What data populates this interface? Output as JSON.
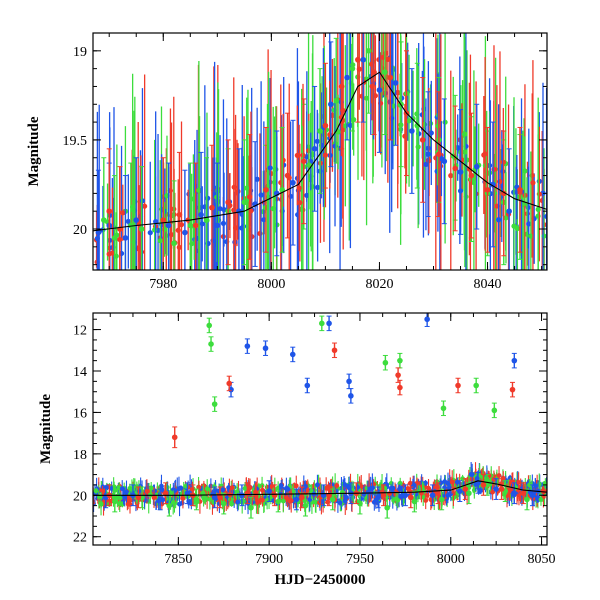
{
  "colors": {
    "blue": "#1f55e8",
    "red": "#f03a2a",
    "green": "#3ddd3d",
    "fit_curve": "#000000",
    "frame": "#000000",
    "background": "#ffffff"
  },
  "chart_data": [
    {
      "type": "scatter",
      "title": "",
      "xlabel": "",
      "ylabel": "Magnitude",
      "xlim": [
        7967,
        8051
      ],
      "ylim": [
        20.23,
        18.9
      ],
      "y_inverted": true,
      "xticks": [
        7980,
        8000,
        8020,
        8040
      ],
      "xtick_labels": [
        "7980",
        "8000",
        "8020",
        "8040"
      ],
      "yticks": [
        19,
        19.5,
        20
      ],
      "ytick_labels": [
        "19",
        "19.5",
        "20"
      ],
      "grid": false,
      "legend": "none",
      "error_bars": true,
      "series_colors": [
        "blue",
        "green",
        "red"
      ],
      "series": [
        {
          "color": "blue",
          "x": [
            7968,
            7970,
            7973,
            7975,
            7981,
            7984,
            7987,
            7990,
            7994,
            7997,
            8001,
            8004,
            8008,
            8011,
            8014,
            8017,
            8020,
            8023,
            8026,
            8029,
            8032,
            8035,
            8038,
            8041,
            8044
          ],
          "y": [
            20.02,
            19.98,
            20.05,
            19.95,
            19.98,
            20.02,
            19.92,
            19.98,
            19.9,
            19.86,
            19.8,
            19.74,
            19.55,
            19.3,
            19.15,
            19.05,
            19.22,
            19.18,
            19.45,
            19.58,
            19.62,
            19.68,
            19.65,
            19.75,
            19.9
          ]
        },
        {
          "color": "green",
          "x": [
            7969,
            7971,
            7974,
            7976,
            7982,
            7985,
            7988,
            7992,
            7995,
            7999,
            8002,
            8006,
            8009,
            8012,
            8015,
            8018,
            8021,
            8024,
            8027,
            8031,
            8034,
            8037,
            8040,
            8043,
            8046
          ],
          "y": [
            19.95,
            20.05,
            19.98,
            20.0,
            20.08,
            19.98,
            19.95,
            19.9,
            19.85,
            19.88,
            19.78,
            19.65,
            19.45,
            19.28,
            19.1,
            19.0,
            19.12,
            19.3,
            19.42,
            19.5,
            19.6,
            19.72,
            19.8,
            19.85,
            19.82
          ]
        },
        {
          "color": "red",
          "x": [
            7970,
            7972,
            7980,
            7983,
            7986,
            7989,
            7992,
            7996,
            7999,
            8003,
            8006,
            8010,
            8013,
            8016,
            8019,
            8022,
            8025,
            8028,
            8031,
            8034,
            8037,
            8040,
            8043,
            8046
          ],
          "y": [
            19.9,
            20.0,
            19.95,
            19.92,
            19.98,
            19.88,
            19.85,
            19.82,
            19.78,
            19.7,
            19.62,
            19.42,
            19.2,
            19.05,
            19.12,
            19.15,
            19.35,
            19.5,
            19.58,
            19.66,
            19.7,
            19.78,
            19.8,
            19.78
          ]
        }
      ],
      "fit_curve": {
        "x": [
          7967,
          7975,
          7985,
          7995,
          8005,
          8012,
          8016,
          8020,
          8025,
          8030,
          8035,
          8040,
          8045,
          8051
        ],
        "y": [
          20.01,
          19.98,
          19.95,
          19.9,
          19.75,
          19.45,
          19.2,
          19.12,
          19.35,
          19.5,
          19.62,
          19.74,
          19.83,
          19.89
        ]
      }
    },
    {
      "type": "scatter",
      "title": "",
      "xlabel": "HJD−2450000",
      "ylabel": "Magnitude",
      "xlim": [
        7803,
        8053
      ],
      "ylim": [
        22.4,
        11.2
      ],
      "y_inverted": true,
      "xticks": [
        7850,
        7900,
        7950,
        8000,
        8050
      ],
      "xtick_labels": [
        "7850",
        "7900",
        "7950",
        "8000",
        "8050"
      ],
      "yticks": [
        12,
        14,
        16,
        18,
        20,
        22
      ],
      "ytick_labels": [
        "12",
        "14",
        "16",
        "18",
        "20",
        "22"
      ],
      "grid": false,
      "legend": "none",
      "error_bars": true,
      "series_colors": [
        "blue",
        "green",
        "red"
      ],
      "series": [
        {
          "color": "blue",
          "x": [
            7810,
            7825,
            7840,
            7855,
            7870,
            7885,
            7900,
            7915,
            7930,
            7945,
            7960,
            7975,
            7990,
            8005,
            8015,
            8025,
            8035,
            8045,
            7888,
            7898,
            7913,
            7921,
            7933,
            7945,
            7987,
            7879,
            7944,
            8035
          ],
          "y": [
            20.1,
            20.0,
            20.2,
            19.9,
            20.1,
            20.0,
            19.8,
            20.2,
            20.0,
            19.9,
            20.1,
            20.0,
            20.0,
            19.8,
            19.4,
            19.7,
            19.9,
            20.0,
            12.8,
            12.9,
            13.2,
            14.7,
            11.7,
            15.2,
            11.5,
            14.9,
            14.5,
            13.5
          ]
        },
        {
          "color": "green",
          "x": [
            7815,
            7830,
            7845,
            7860,
            7875,
            7890,
            7905,
            7920,
            7935,
            7950,
            7965,
            7980,
            7995,
            8010,
            8020,
            8030,
            8042,
            7867,
            7868,
            7870,
            7929,
            7964,
            7972,
            7996,
            8014,
            8024
          ],
          "y": [
            20.3,
            20.1,
            20.5,
            20.2,
            20.4,
            20.6,
            20.3,
            20.5,
            20.2,
            20.4,
            20.6,
            20.3,
            20.2,
            19.9,
            19.5,
            19.8,
            20.2,
            11.8,
            12.7,
            15.6,
            11.7,
            13.6,
            13.5,
            15.8,
            14.7,
            15.9
          ]
        },
        {
          "color": "red",
          "x": [
            7812,
            7828,
            7843,
            7858,
            7873,
            7888,
            7903,
            7918,
            7933,
            7948,
            7963,
            7978,
            7993,
            8008,
            8018,
            8028,
            8040,
            7878,
            7936,
            7971,
            7972,
            8004,
            8034,
            7848
          ],
          "y": [
            20.0,
            20.1,
            19.9,
            20.0,
            20.1,
            19.9,
            20.0,
            20.1,
            20.0,
            19.9,
            20.0,
            20.1,
            19.9,
            19.7,
            19.5,
            19.7,
            19.9,
            14.6,
            13.0,
            14.2,
            14.8,
            14.7,
            14.9,
            17.2
          ]
        }
      ],
      "fit_curve": {
        "x": [
          7803,
          7850,
          7900,
          7950,
          7980,
          8000,
          8015,
          8025,
          8040,
          8053
        ],
        "y": [
          20.0,
          20.0,
          19.95,
          19.9,
          19.85,
          19.75,
          19.3,
          19.45,
          19.75,
          19.85
        ]
      }
    }
  ]
}
